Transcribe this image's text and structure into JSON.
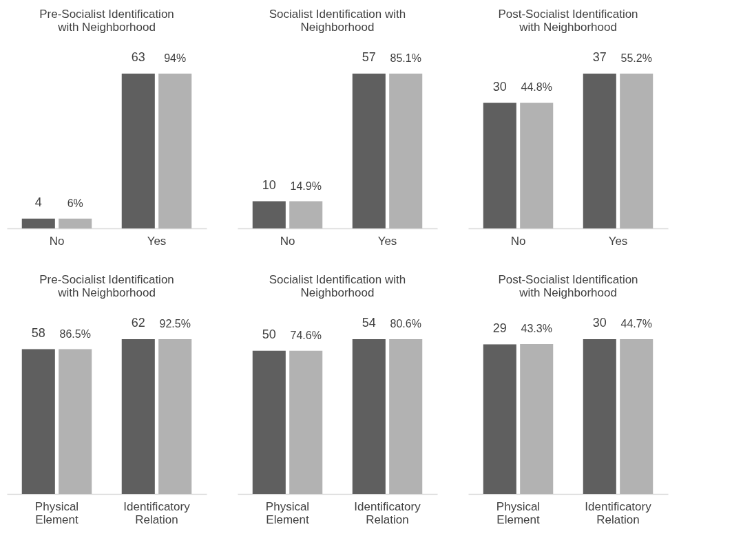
{
  "chart_data": [
    {
      "type": "bar",
      "title": "Pre-Socialist Identification with Neighborhood",
      "categories": [
        "No",
        "Yes"
      ],
      "tick_labels": "x",
      "series": [
        {
          "color": "#5f5f5f",
          "values": [
            4,
            63
          ],
          "value_labels": [
            "4",
            "63"
          ]
        },
        {
          "color": "#b2b2b2",
          "values": [
            6,
            94
          ],
          "value_labels": [
            "6%",
            "94%"
          ],
          "axis": "y2"
        }
      ]
    },
    {
      "type": "bar",
      "title": "Socialist Identification with Neighborhood",
      "categories": [
        "No",
        "Yes"
      ],
      "tick_labels": "x",
      "series": [
        {
          "color": "#5f5f5f",
          "values": [
            10,
            57
          ],
          "value_labels": [
            "10",
            "57"
          ]
        },
        {
          "color": "#b2b2b2",
          "values": [
            14.9,
            85.1
          ],
          "value_labels": [
            "14.9%",
            "85.1%"
          ],
          "axis": "y2"
        }
      ]
    },
    {
      "type": "bar",
      "title": "Post-Socialist Identification with Neighborhood",
      "categories": [
        "No",
        "Yes"
      ],
      "tick_labels": "x",
      "series": [
        {
          "color": "#5f5f5f",
          "values": [
            30,
            37
          ],
          "value_labels": [
            "30",
            "37"
          ]
        },
        {
          "color": "#b2b2b2",
          "values": [
            44.8,
            55.2
          ],
          "value_labels": [
            "44.8%",
            "55.2%"
          ],
          "axis": "y2"
        }
      ]
    },
    {
      "type": "bar",
      "title": "Pre-Socialist Identification with Neighborhood",
      "categories": [
        "Physical Element",
        "Identificatory Relation"
      ],
      "tick_labels": "x",
      "series": [
        {
          "color": "#5f5f5f",
          "values": [
            58,
            62
          ],
          "value_labels": [
            "58",
            "62"
          ]
        },
        {
          "color": "#b2b2b2",
          "values": [
            86.5,
            92.5
          ],
          "value_labels": [
            "86.5%",
            "92.5%"
          ],
          "axis": "y2"
        }
      ]
    },
    {
      "type": "bar",
      "title": "Socialist Identification with Neighborhood",
      "categories": [
        "Physical Element",
        "Identificatory Relation"
      ],
      "tick_labels": "x",
      "series": [
        {
          "color": "#5f5f5f",
          "values": [
            50,
            54
          ],
          "value_labels": [
            "50",
            "54"
          ]
        },
        {
          "color": "#b2b2b2",
          "values": [
            74.6,
            80.6
          ],
          "value_labels": [
            "74.6%",
            "80.6%"
          ],
          "axis": "y2"
        }
      ]
    },
    {
      "type": "bar",
      "title": "Post-Socialist Identification with Neighborhood",
      "categories": [
        "Physical Element",
        "Identificatory Relation"
      ],
      "tick_labels": "x",
      "series": [
        {
          "color": "#5f5f5f",
          "values": [
            29,
            30
          ],
          "value_labels": [
            "29",
            "30"
          ]
        },
        {
          "color": "#b2b2b2",
          "values": [
            43.3,
            44.7
          ],
          "value_labels": [
            "43.3%",
            "44.7%"
          ],
          "axis": "y2"
        }
      ]
    }
  ]
}
